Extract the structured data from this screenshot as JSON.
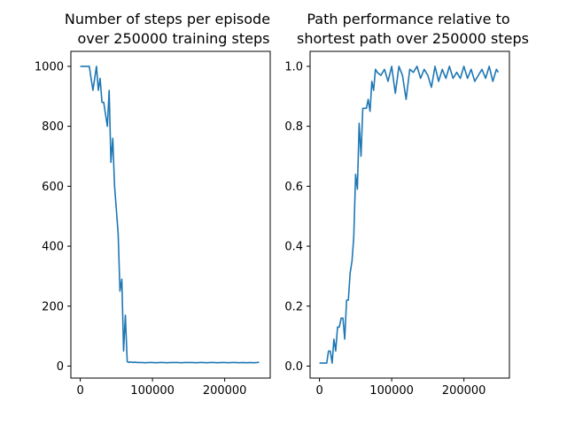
{
  "chart_data": [
    {
      "type": "line",
      "title_lines": [
        "Number of steps per episode",
        "over 250000 training steps"
      ],
      "xlim": [
        -13000,
        263000
      ],
      "ylim": [
        -40,
        1050
      ],
      "xticks": [
        0,
        100000,
        200000
      ],
      "xtick_labels": [
        "0",
        "100000",
        "200000"
      ],
      "yticks": [
        0,
        200,
        400,
        600,
        800,
        1000
      ],
      "ytick_labels": [
        "0",
        "200",
        "400",
        "600",
        "800",
        "1000"
      ],
      "series": [
        {
          "color": "#1f77b4",
          "x": [
            0,
            2500,
            5000,
            7500,
            10000,
            12500,
            15000,
            17500,
            20000,
            22500,
            25000,
            27500,
            30000,
            32500,
            35000,
            37500,
            40000,
            42500,
            45000,
            47500,
            50000,
            52500,
            55000,
            57500,
            60000,
            62500,
            65000,
            67500,
            70000,
            72500,
            75000,
            80000,
            85000,
            90000,
            95000,
            100000,
            105000,
            110000,
            115000,
            120000,
            125000,
            130000,
            135000,
            140000,
            145000,
            150000,
            155000,
            160000,
            165000,
            170000,
            175000,
            180000,
            185000,
            190000,
            195000,
            200000,
            205000,
            210000,
            215000,
            220000,
            225000,
            230000,
            235000,
            240000,
            245000,
            247500
          ],
          "y": [
            1000,
            1000,
            1000,
            1000,
            1000,
            1000,
            960,
            920,
            960,
            1000,
            920,
            960,
            880,
            880,
            840,
            800,
            920,
            680,
            760,
            600,
            520,
            440,
            250,
            290,
            50,
            170,
            15,
            12,
            14,
            12,
            13,
            12,
            12,
            11,
            12,
            12,
            11,
            12,
            12,
            11,
            12,
            12,
            12,
            11,
            12,
            12,
            12,
            11,
            12,
            12,
            11,
            12,
            12,
            11,
            12,
            12,
            11,
            12,
            12,
            11,
            12,
            11,
            12,
            11,
            12,
            13
          ]
        }
      ]
    },
    {
      "type": "line",
      "title_lines": [
        "Path performance relative to",
        "shortest path over 250000 steps"
      ],
      "xlim": [
        -13000,
        263000
      ],
      "ylim": [
        -0.04,
        1.05
      ],
      "xticks": [
        0,
        100000,
        200000
      ],
      "xtick_labels": [
        "0",
        "100000",
        "200000"
      ],
      "yticks": [
        0.0,
        0.2,
        0.4,
        0.6,
        0.8,
        1.0
      ],
      "ytick_labels": [
        "0.0",
        "0.2",
        "0.4",
        "0.6",
        "0.8",
        "1.0"
      ],
      "series": [
        {
          "color": "#1f77b4",
          "x": [
            0,
            2500,
            5000,
            7500,
            10000,
            12500,
            15000,
            17500,
            20000,
            22500,
            25000,
            27500,
            30000,
            32500,
            35000,
            37500,
            40000,
            42500,
            45000,
            47500,
            50000,
            52500,
            55000,
            57500,
            60000,
            62500,
            65000,
            67500,
            70000,
            72500,
            75000,
            77500,
            80000,
            85000,
            90000,
            95000,
            100000,
            105000,
            110000,
            115000,
            120000,
            125000,
            130000,
            135000,
            140000,
            145000,
            150000,
            155000,
            160000,
            165000,
            170000,
            175000,
            180000,
            185000,
            190000,
            195000,
            200000,
            205000,
            210000,
            215000,
            220000,
            225000,
            230000,
            235000,
            240000,
            245000,
            247500
          ],
          "y": [
            0.01,
            0.01,
            0.01,
            0.01,
            0.01,
            0.05,
            0.05,
            0.01,
            0.09,
            0.05,
            0.13,
            0.13,
            0.16,
            0.16,
            0.09,
            0.22,
            0.22,
            0.31,
            0.35,
            0.43,
            0.64,
            0.59,
            0.81,
            0.7,
            0.86,
            0.86,
            0.86,
            0.89,
            0.85,
            0.95,
            0.92,
            0.99,
            0.98,
            0.97,
            0.99,
            0.95,
            1.0,
            0.91,
            1.0,
            0.97,
            0.89,
            0.99,
            0.98,
            1.0,
            0.96,
            0.99,
            0.97,
            0.93,
            1.0,
            0.95,
            0.99,
            0.96,
            1.0,
            0.96,
            0.98,
            0.96,
            1.0,
            0.96,
            0.99,
            0.95,
            0.97,
            0.99,
            0.96,
            1.0,
            0.95,
            0.99,
            0.98
          ]
        }
      ]
    }
  ]
}
